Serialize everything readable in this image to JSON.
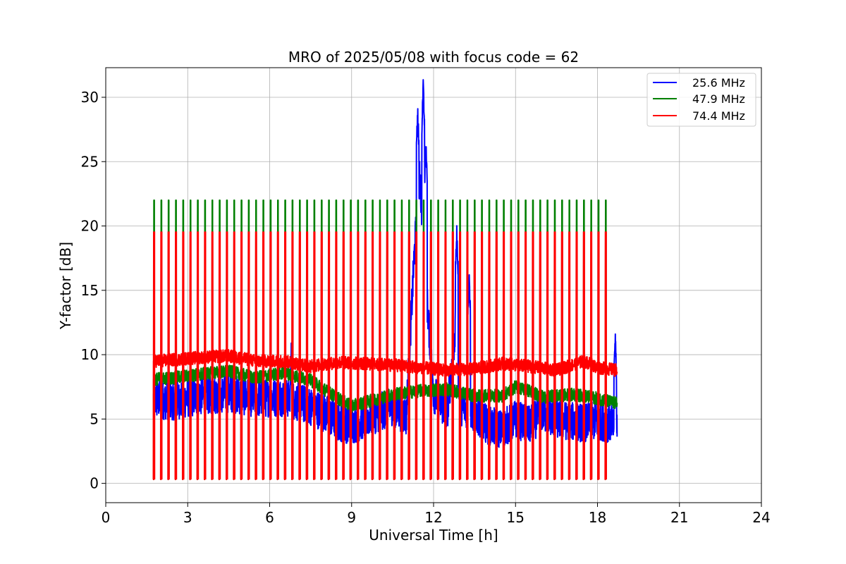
{
  "chart_data": {
    "type": "line",
    "title": "MRO of 2025/05/08 with focus code = 62",
    "xlabel": "Universal Time [h]",
    "ylabel": "Y-factor [dB]",
    "xlim": [
      0,
      24
    ],
    "ylim": [
      -1.5,
      32.3
    ],
    "xticks": [
      0,
      3,
      6,
      9,
      12,
      15,
      18,
      21,
      24
    ],
    "yticks": [
      0,
      5,
      10,
      15,
      20,
      25,
      30
    ],
    "grid": true,
    "legend_position": "top-right",
    "time_range": [
      1.75,
      18.72
    ],
    "calibration": {
      "period_h": 0.2667,
      "first_h": 1.75,
      "last_h": 18.55,
      "green_top": 22.0,
      "red_top": 19.5,
      "bottom": 0.3
    },
    "series": [
      {
        "name": "25.6 MHz",
        "color": "#0000ff",
        "baseline_x": [
          1.75,
          2.5,
          3.5,
          4.5,
          5.5,
          6.5,
          7.5,
          8.0,
          8.5,
          9.0,
          9.5,
          10.0,
          10.5,
          11.0,
          11.3,
          11.5,
          11.7,
          12.0,
          12.5,
          12.8,
          13.0,
          13.5,
          14.0,
          14.5,
          15.0,
          15.5,
          16.0,
          16.5,
          17.0,
          17.5,
          18.0,
          18.5,
          18.72
        ],
        "baseline_y": [
          6.5,
          6.4,
          6.8,
          7.0,
          6.6,
          6.7,
          6.0,
          5.5,
          4.8,
          4.5,
          5.0,
          5.5,
          6.0,
          5.2,
          18.0,
          24.0,
          16.0,
          7.0,
          5.5,
          12.0,
          6.0,
          5.5,
          4.5,
          4.2,
          5.0,
          4.5,
          5.5,
          5.0,
          4.8,
          4.7,
          4.9,
          4.6,
          4.0
        ],
        "noise": 1.5,
        "peaks": [
          {
            "x": 11.42,
            "y": 28.8
          },
          {
            "x": 11.62,
            "y": 30.7
          },
          {
            "x": 11.72,
            "y": 26.3
          },
          {
            "x": 12.85,
            "y": 19.4
          },
          {
            "x": 13.3,
            "y": 16.0
          },
          {
            "x": 6.8,
            "y": 10.8
          },
          {
            "x": 18.65,
            "y": 11.3
          }
        ]
      },
      {
        "name": "47.9 MHz",
        "color": "#008000",
        "baseline_x": [
          1.75,
          2.5,
          3.5,
          4.5,
          5.5,
          6.5,
          7.5,
          8.5,
          9.0,
          9.5,
          10.5,
          11.5,
          12.5,
          13.5,
          14.5,
          15.0,
          15.5,
          16.0,
          16.5,
          17.0,
          17.5,
          18.0,
          18.72
        ],
        "baseline_y": [
          8.1,
          8.2,
          8.5,
          8.7,
          8.2,
          8.6,
          8.0,
          6.6,
          6.0,
          6.3,
          6.9,
          7.2,
          7.3,
          6.8,
          6.8,
          7.5,
          7.2,
          6.7,
          6.8,
          6.9,
          6.8,
          6.6,
          6.2
        ],
        "noise": 0.5
      },
      {
        "name": "74.4 MHz",
        "color": "#ff0000",
        "baseline_x": [
          1.75,
          2.5,
          3.5,
          4.5,
          5.5,
          6.5,
          7.5,
          8.5,
          9.5,
          10.5,
          11.5,
          12.5,
          13.5,
          14.5,
          15.5,
          16.5,
          17.5,
          18.0,
          18.72
        ],
        "baseline_y": [
          9.5,
          9.6,
          9.8,
          9.9,
          9.5,
          9.5,
          9.1,
          9.4,
          9.3,
          9.2,
          9.0,
          8.8,
          8.9,
          9.3,
          9.1,
          8.8,
          9.5,
          9.0,
          8.8
        ],
        "noise": 0.5
      }
    ]
  }
}
